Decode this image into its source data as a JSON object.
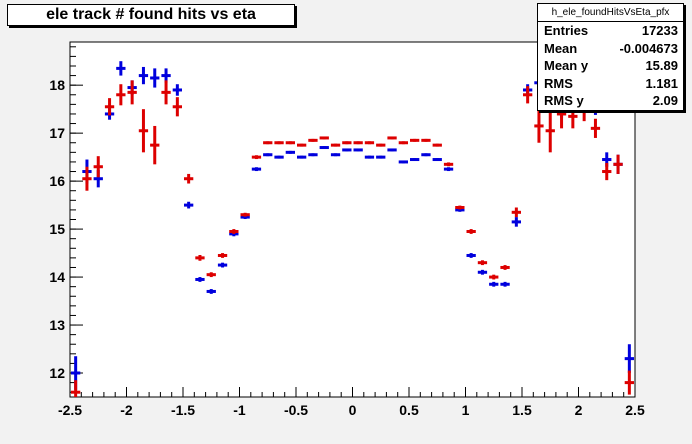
{
  "title": "ele track # found hits vs eta",
  "stats": {
    "name": "h_ele_foundHitsVsEta_pfx",
    "rows": [
      {
        "label": "Entries",
        "value": "17233"
      },
      {
        "label": "Mean",
        "value": "-0.004673"
      },
      {
        "label": "Mean y",
        "value": "15.89"
      },
      {
        "label": "RMS",
        "value": "1.181"
      },
      {
        "label": "RMS y",
        "value": "2.09"
      }
    ]
  },
  "colors": {
    "series_blue": "#0000dd",
    "series_red": "#dd0000",
    "canvas": "#f2f2f2",
    "frame": "#ffffff"
  },
  "chart_data": {
    "type": "scatter",
    "title": "ele track # found hits vs eta",
    "xlabel": "",
    "ylabel": "",
    "xlim": [
      -2.5,
      2.5
    ],
    "ylim": [
      11.5,
      18.9
    ],
    "xticks": [
      -2.5,
      -2,
      -1.5,
      -1,
      -0.5,
      0,
      0.5,
      1,
      1.5,
      2,
      2.5
    ],
    "xtick_labels": [
      "-2.5",
      "-2",
      "-1.5",
      "-1",
      "-0.5",
      "0",
      "0.5",
      "1",
      "1.5",
      "2",
      "2.5"
    ],
    "yticks": [
      12,
      13,
      14,
      15,
      16,
      17,
      18
    ],
    "ytick_labels": [
      "12",
      "13",
      "14",
      "15",
      "16",
      "17",
      "18"
    ],
    "legend": "none",
    "series": [
      {
        "color": "#0000dd",
        "x": [
          -2.45,
          -2.35,
          -2.25,
          -2.15,
          -2.05,
          -1.95,
          -1.85,
          -1.75,
          -1.65,
          -1.55,
          -1.45,
          -1.35,
          -1.25,
          -1.15,
          -1.05,
          -0.95,
          -0.85,
          -0.75,
          -0.65,
          -0.55,
          -0.45,
          -0.35,
          -0.25,
          -0.15,
          -0.05,
          0.05,
          0.15,
          0.25,
          0.35,
          0.45,
          0.55,
          0.65,
          0.75,
          0.85,
          0.95,
          1.05,
          1.15,
          1.25,
          1.35,
          1.45,
          1.55,
          1.65,
          1.75,
          1.85,
          1.95,
          2.05,
          2.15,
          2.25,
          2.35,
          2.45
        ],
        "y": [
          12.0,
          16.2,
          16.05,
          17.4,
          18.35,
          17.95,
          18.2,
          18.15,
          18.2,
          17.9,
          15.5,
          13.95,
          13.7,
          14.25,
          14.9,
          15.25,
          16.25,
          16.55,
          16.5,
          16.6,
          16.5,
          16.55,
          16.7,
          16.55,
          16.65,
          16.65,
          16.5,
          16.5,
          16.65,
          16.4,
          16.45,
          16.55,
          16.45,
          16.25,
          15.4,
          14.45,
          14.1,
          13.85,
          13.85,
          15.15,
          17.9,
          18.05,
          17.9,
          17.5,
          17.6,
          17.65,
          17.5,
          16.45,
          16.35,
          12.3
        ],
        "yerr": [
          0.35,
          0.25,
          0.18,
          0.12,
          0.15,
          0.15,
          0.18,
          0.2,
          0.15,
          0.12,
          0.07,
          0.05,
          0.05,
          0.05,
          0.05,
          0.04,
          0.04,
          0.03,
          0.03,
          0.03,
          0.03,
          0.03,
          0.03,
          0.03,
          0.03,
          0.03,
          0.03,
          0.03,
          0.03,
          0.03,
          0.03,
          0.03,
          0.03,
          0.04,
          0.04,
          0.05,
          0.05,
          0.05,
          0.05,
          0.1,
          0.12,
          0.18,
          0.2,
          0.18,
          0.15,
          0.15,
          0.12,
          0.15,
          0.2,
          0.3
        ]
      },
      {
        "color": "#dd0000",
        "x": [
          -2.45,
          -2.35,
          -2.25,
          -2.15,
          -2.05,
          -1.95,
          -1.85,
          -1.75,
          -1.65,
          -1.55,
          -1.45,
          -1.35,
          -1.25,
          -1.15,
          -1.05,
          -0.95,
          -0.85,
          -0.75,
          -0.65,
          -0.55,
          -0.45,
          -0.35,
          -0.25,
          -0.15,
          -0.05,
          0.05,
          0.15,
          0.25,
          0.35,
          0.45,
          0.55,
          0.65,
          0.75,
          0.85,
          0.95,
          1.05,
          1.15,
          1.25,
          1.35,
          1.45,
          1.55,
          1.65,
          1.75,
          1.85,
          1.95,
          2.05,
          2.15,
          2.25,
          2.35,
          2.45
        ],
        "y": [
          11.6,
          16.05,
          16.3,
          17.55,
          17.8,
          17.85,
          17.05,
          16.75,
          17.85,
          17.55,
          16.05,
          14.4,
          14.05,
          14.45,
          14.95,
          15.3,
          16.5,
          16.8,
          16.8,
          16.8,
          16.75,
          16.85,
          16.9,
          16.75,
          16.8,
          16.8,
          16.8,
          16.75,
          16.9,
          16.8,
          16.85,
          16.85,
          16.75,
          16.35,
          15.45,
          14.95,
          14.3,
          14.0,
          14.2,
          15.35,
          17.8,
          17.15,
          17.05,
          17.4,
          17.35,
          17.5,
          17.1,
          16.2,
          16.35,
          11.8
        ],
        "yerr": [
          0.25,
          0.25,
          0.22,
          0.18,
          0.22,
          0.25,
          0.45,
          0.4,
          0.25,
          0.2,
          0.1,
          0.06,
          0.05,
          0.05,
          0.05,
          0.04,
          0.04,
          0.03,
          0.03,
          0.03,
          0.03,
          0.03,
          0.03,
          0.03,
          0.03,
          0.03,
          0.03,
          0.03,
          0.03,
          0.03,
          0.03,
          0.03,
          0.03,
          0.04,
          0.04,
          0.05,
          0.05,
          0.05,
          0.05,
          0.1,
          0.18,
          0.35,
          0.45,
          0.3,
          0.25,
          0.25,
          0.2,
          0.18,
          0.2,
          0.25
        ]
      }
    ]
  }
}
